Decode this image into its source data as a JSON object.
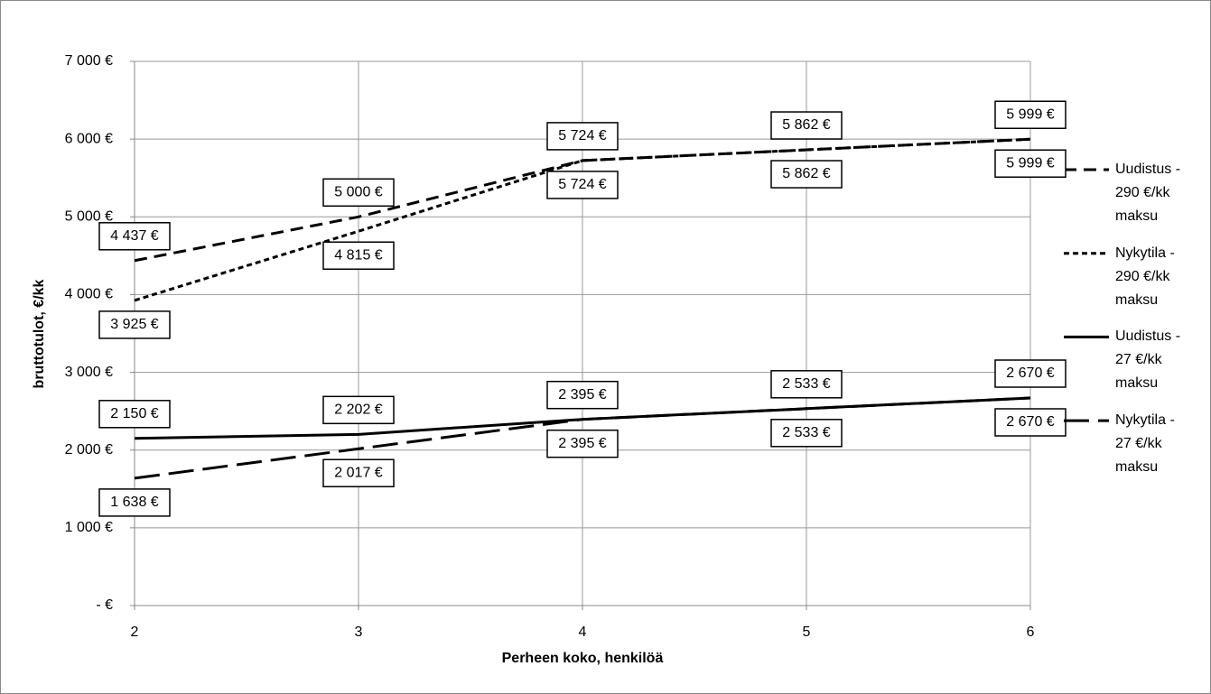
{
  "chart_data": {
    "type": "line",
    "x_label": "Perheen koko, henkilöä",
    "y_label": "bruttotulot, €/kk",
    "x": [
      2,
      3,
      4,
      5,
      6
    ],
    "xlim": [
      2,
      6
    ],
    "xticks": [
      2,
      3,
      4,
      5,
      6
    ],
    "ylim": [
      0,
      7000
    ],
    "yticks": [
      {
        "value": 0,
        "label": "-  €"
      },
      {
        "value": 1000,
        "label": "1 000 €"
      },
      {
        "value": 2000,
        "label": "2 000 €"
      },
      {
        "value": 3000,
        "label": "3 000 €"
      },
      {
        "value": 4000,
        "label": "4 000 €"
      },
      {
        "value": 5000,
        "label": "5 000 €"
      },
      {
        "value": 6000,
        "label": "6 000 €"
      },
      {
        "value": 7000,
        "label": "7 000 €"
      }
    ],
    "grid": true,
    "legend": "right",
    "series": [
      {
        "name": "Uudistus - 290 €/kk maksu",
        "color": "#000000",
        "dash": "dash",
        "label_side": "above",
        "values": [
          4437,
          5000,
          5724,
          5862,
          5999
        ],
        "value_labels": [
          "4 437 €",
          "5 000 €",
          "5 724 €",
          "5 862 €",
          "5 999 €"
        ]
      },
      {
        "name": "Nykytila - 290 €/kk maksu",
        "color": "#000000",
        "dash": "short-dash",
        "label_side": "below",
        "values": [
          3925,
          4815,
          5724,
          5862,
          5999
        ],
        "value_labels": [
          "3 925 €",
          "4 815 €",
          "5 724 €",
          "5 862 €",
          "5 999 €"
        ]
      },
      {
        "name": "Uudistus - 27 €/kk maksu",
        "color": "#000000",
        "dash": "solid",
        "label_side": "above",
        "values": [
          2150,
          2202,
          2395,
          2533,
          2670
        ],
        "value_labels": [
          "2 150 €",
          "2 202 €",
          "2 395 €",
          "2 533 €",
          "2 670 €"
        ]
      },
      {
        "name": "Nykytila - 27 €/kk maksu",
        "color": "#000000",
        "dash": "long-dash",
        "label_side": "below",
        "values": [
          1638,
          2017,
          2395,
          2533,
          2670
        ],
        "value_labels": [
          "1 638 €",
          "2 017 €",
          "2 395 €",
          "2 533 €",
          "2 670 €"
        ]
      }
    ]
  }
}
